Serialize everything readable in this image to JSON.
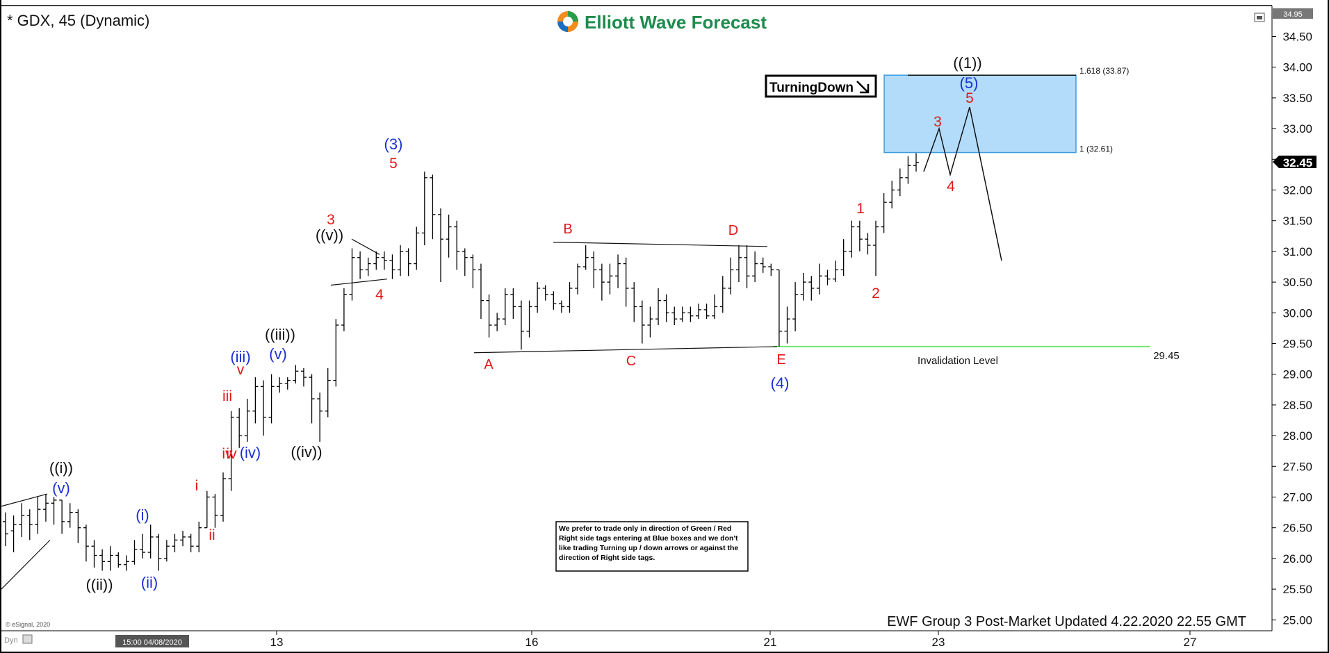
{
  "header": {
    "symbol_title": "* GDX, 45 (Dynamic)",
    "brand_name": "Elliott Wave Forecast"
  },
  "chart_data": {
    "type": "bar",
    "title": "* GDX, 45 (Dynamic)",
    "xlabel": "",
    "ylabel": "",
    "ylim": [
      24.85,
      34.95
    ],
    "grid": false,
    "y_ticks": [
      "34.50",
      "34.00",
      "33.50",
      "33.00",
      "32.50",
      "32.00",
      "31.50",
      "31.00",
      "30.50",
      "30.00",
      "29.50",
      "29.00",
      "28.50",
      "28.00",
      "27.50",
      "27.00",
      "26.50",
      "26.00",
      "25.50",
      "25.00"
    ],
    "y_top_label": "34.95",
    "x_ticks": [
      "13",
      "16",
      "21",
      "23",
      "27"
    ],
    "time_label": "15:00 04/08/2020",
    "last_price": "32.45",
    "ohlc_bars": [
      [
        26.6,
        26.4,
        26.75,
        26.2
      ],
      [
        26.45,
        26.55,
        26.7,
        26.1
      ],
      [
        26.55,
        26.7,
        26.9,
        26.35
      ],
      [
        26.7,
        26.55,
        26.8,
        26.3
      ],
      [
        26.55,
        26.8,
        27.0,
        26.4
      ],
      [
        26.8,
        26.9,
        27.05,
        26.6
      ],
      [
        26.9,
        26.95,
        27.0,
        26.55
      ],
      [
        26.95,
        26.6,
        26.95,
        26.4
      ],
      [
        26.6,
        26.75,
        26.9,
        26.5
      ],
      [
        26.75,
        26.5,
        26.8,
        26.25
      ],
      [
        26.5,
        26.2,
        26.55,
        25.95
      ],
      [
        26.2,
        26.05,
        26.3,
        25.85
      ],
      [
        26.05,
        25.95,
        26.15,
        25.8
      ],
      [
        25.95,
        26.05,
        26.2,
        25.8
      ],
      [
        26.05,
        25.9,
        26.1,
        25.85
      ],
      [
        25.9,
        25.95,
        26.05,
        25.8
      ],
      [
        25.95,
        26.15,
        26.3,
        25.9
      ],
      [
        26.15,
        26.1,
        26.4,
        26.0
      ],
      [
        26.1,
        26.35,
        26.55,
        26.0
      ],
      [
        26.35,
        26.0,
        26.4,
        25.8
      ],
      [
        26.0,
        26.2,
        26.3,
        25.95
      ],
      [
        26.2,
        26.3,
        26.4,
        26.1
      ],
      [
        26.3,
        26.35,
        26.45,
        26.2
      ],
      [
        26.35,
        26.2,
        26.4,
        26.1
      ],
      [
        26.2,
        26.5,
        26.6,
        26.1
      ],
      [
        26.5,
        27.0,
        27.1,
        26.5
      ],
      [
        27.0,
        26.7,
        27.05,
        26.5
      ],
      [
        26.7,
        27.3,
        27.4,
        26.6
      ],
      [
        27.3,
        28.3,
        28.4,
        27.1
      ],
      [
        28.3,
        28.0,
        28.45,
        27.8
      ],
      [
        28.0,
        28.4,
        28.6,
        27.9
      ],
      [
        28.4,
        28.8,
        28.95,
        28.2
      ],
      [
        28.8,
        28.3,
        28.9,
        28.0
      ],
      [
        28.3,
        28.8,
        29.0,
        28.2
      ],
      [
        28.8,
        28.85,
        28.95,
        28.7
      ],
      [
        28.85,
        28.9,
        28.95,
        28.75
      ],
      [
        28.9,
        29.05,
        29.15,
        28.85
      ],
      [
        29.05,
        28.95,
        29.1,
        28.8
      ],
      [
        28.95,
        28.6,
        29.0,
        28.2
      ],
      [
        28.6,
        28.4,
        28.7,
        27.9
      ],
      [
        28.4,
        28.9,
        29.1,
        28.3
      ],
      [
        28.9,
        29.8,
        29.9,
        28.8
      ],
      [
        29.8,
        30.3,
        30.4,
        29.7
      ],
      [
        30.3,
        30.9,
        31.05,
        30.2
      ],
      [
        30.9,
        30.7,
        31.0,
        30.55
      ],
      [
        30.7,
        30.8,
        30.9,
        30.6
      ],
      [
        30.8,
        30.9,
        31.0,
        30.7
      ],
      [
        30.9,
        30.85,
        31.0,
        30.7
      ],
      [
        30.85,
        30.7,
        30.95,
        30.55
      ],
      [
        30.7,
        31.0,
        31.1,
        30.6
      ],
      [
        31.0,
        30.8,
        31.05,
        30.6
      ],
      [
        30.8,
        31.3,
        31.4,
        30.7
      ],
      [
        31.3,
        32.2,
        32.3,
        31.1
      ],
      [
        32.2,
        31.6,
        32.25,
        31.2
      ],
      [
        31.6,
        31.2,
        31.7,
        30.5
      ],
      [
        31.2,
        31.4,
        31.6,
        30.9
      ],
      [
        31.4,
        31.0,
        31.5,
        30.7
      ],
      [
        31.0,
        30.9,
        31.05,
        30.6
      ],
      [
        30.9,
        30.7,
        30.95,
        30.4
      ],
      [
        30.7,
        30.2,
        30.8,
        29.9
      ],
      [
        30.2,
        29.8,
        30.3,
        29.6
      ],
      [
        29.8,
        29.9,
        30.0,
        29.7
      ],
      [
        29.9,
        30.3,
        30.4,
        29.8
      ],
      [
        30.3,
        30.1,
        30.4,
        29.9
      ],
      [
        30.1,
        29.7,
        30.2,
        29.4
      ],
      [
        29.7,
        30.1,
        30.2,
        29.6
      ],
      [
        30.1,
        30.4,
        30.5,
        30.0
      ],
      [
        30.4,
        30.3,
        30.45,
        30.2
      ],
      [
        30.3,
        30.15,
        30.35,
        30.05
      ],
      [
        30.15,
        30.1,
        30.2,
        30.0
      ],
      [
        30.1,
        30.4,
        30.5,
        30.0
      ],
      [
        30.4,
        30.75,
        30.8,
        30.3
      ],
      [
        30.75,
        30.9,
        31.1,
        30.7
      ],
      [
        30.9,
        30.7,
        31.0,
        30.4
      ],
      [
        30.7,
        30.5,
        30.8,
        30.2
      ],
      [
        30.5,
        30.6,
        30.8,
        30.3
      ],
      [
        30.6,
        30.8,
        30.95,
        30.4
      ],
      [
        30.8,
        30.4,
        30.9,
        30.1
      ],
      [
        30.4,
        30.1,
        30.5,
        29.85
      ],
      [
        30.1,
        29.8,
        30.2,
        29.5
      ],
      [
        29.8,
        29.9,
        30.1,
        29.6
      ],
      [
        29.9,
        30.2,
        30.4,
        29.8
      ],
      [
        30.2,
        30.0,
        30.3,
        29.85
      ],
      [
        30.0,
        29.9,
        30.1,
        29.8
      ],
      [
        29.9,
        30.0,
        30.1,
        29.85
      ],
      [
        30.0,
        29.95,
        30.1,
        29.85
      ],
      [
        29.95,
        30.05,
        30.15,
        29.9
      ],
      [
        30.05,
        29.95,
        30.15,
        29.9
      ],
      [
        29.95,
        30.1,
        30.3,
        29.9
      ],
      [
        30.1,
        30.4,
        30.6,
        30.0
      ],
      [
        30.4,
        30.7,
        30.9,
        30.3
      ],
      [
        30.7,
        30.9,
        31.1,
        30.5
      ],
      [
        30.9,
        30.6,
        31.1,
        30.4
      ],
      [
        30.6,
        30.8,
        31.0,
        30.5
      ],
      [
        30.8,
        30.75,
        30.9,
        30.65
      ],
      [
        30.75,
        30.7,
        30.8,
        30.6
      ],
      [
        30.7,
        29.7,
        30.7,
        29.45
      ],
      [
        29.7,
        29.9,
        30.1,
        29.5
      ],
      [
        29.9,
        30.3,
        30.5,
        29.7
      ],
      [
        30.3,
        30.5,
        30.65,
        30.2
      ],
      [
        30.5,
        30.4,
        30.6,
        30.2
      ],
      [
        30.4,
        30.6,
        30.8,
        30.3
      ],
      [
        30.6,
        30.55,
        30.7,
        30.45
      ],
      [
        30.55,
        30.7,
        30.85,
        30.5
      ],
      [
        30.7,
        31.0,
        31.2,
        30.6
      ],
      [
        31.0,
        31.4,
        31.5,
        30.9
      ],
      [
        31.4,
        31.2,
        31.5,
        31.0
      ],
      [
        31.2,
        31.1,
        31.3,
        30.95
      ],
      [
        31.1,
        31.4,
        31.5,
        30.6
      ],
      [
        31.4,
        31.8,
        31.95,
        31.3
      ],
      [
        31.8,
        32.0,
        32.15,
        31.7
      ],
      [
        32.0,
        32.2,
        32.35,
        31.9
      ],
      [
        32.2,
        32.4,
        32.55,
        32.1
      ],
      [
        32.4,
        32.45,
        32.6,
        32.3
      ]
    ],
    "wave_labels": {
      "black": [
        "((i))",
        "((ii))",
        "((iii))",
        "((iv))",
        "((v))",
        "((1))"
      ],
      "blue": [
        "(v)",
        "(i)",
        "(ii)",
        "(iii)",
        "(iv)",
        "(v)",
        "(3)",
        "(4)",
        "(5)"
      ],
      "red_numbers": [
        "3",
        "4",
        "5",
        "1",
        "2",
        "3",
        "4",
        "5"
      ],
      "red_roman": [
        "i",
        "ii",
        "iii",
        "iv",
        "v",
        "iv"
      ],
      "red_letters": [
        "A",
        "B",
        "C",
        "D",
        "E"
      ]
    },
    "target_box": {
      "lower": 32.61,
      "upper": 33.87,
      "lower_label": "1 (32.61)",
      "upper_label": "1.618 (33.87)",
      "color": "#b3dcfb"
    },
    "invalidation": {
      "level": 29.45,
      "label": "Invalidation Level",
      "value_label": "29.45",
      "color": "#6fe86f"
    },
    "projection_path": [
      [
        32.3,
        33.0,
        32.25,
        33.35,
        30.85
      ]
    ],
    "turning_badge": "TurningDown",
    "note_text": "We prefer to trade only in direction of Green / Red Right side tags entering at Blue boxes and we don't like trading Turning up / down arrows or against the direction of Right side tags.",
    "footer_text": "EWF Group 3 Post-Market Updated 4.22.2020 22.55 GMT",
    "copyright": "© eSignal, 2020",
    "corner_label": "Dyn",
    "colors": {
      "wave_black": "#111111",
      "wave_blue": "#1a2fd6",
      "wave_red": "#e01818",
      "brand_green": "#1e8b4c",
      "price_line": "#000000"
    }
  }
}
